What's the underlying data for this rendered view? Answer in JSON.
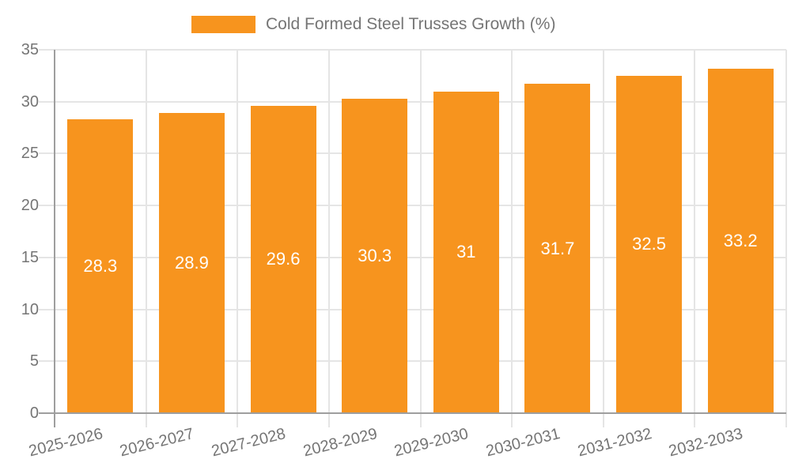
{
  "chart_data": {
    "type": "bar",
    "title": "",
    "xlabel": "",
    "ylabel": "",
    "legend": {
      "label": "Cold Formed Steel Trusses Growth (%)",
      "position": "top"
    },
    "categories": [
      "2025-2026",
      "2026-2027",
      "2027-2028",
      "2028-2029",
      "2029-2030",
      "2030-2031",
      "2031-2032",
      "2032-2033"
    ],
    "series": [
      {
        "name": "Cold Formed Steel Trusses Growth (%)",
        "values": [
          28.3,
          28.9,
          29.6,
          30.3,
          31,
          31.7,
          32.5,
          33.2
        ]
      }
    ],
    "value_labels": [
      "28.3",
      "28.9",
      "29.6",
      "30.3",
      "31",
      "31.7",
      "32.5",
      "33.2"
    ],
    "ylim": [
      0,
      35
    ],
    "yticks": [
      0,
      5,
      10,
      15,
      20,
      25,
      30,
      35
    ],
    "grid": true,
    "colors": {
      "bar": "#F7941E",
      "grid": "#E5E5E5",
      "axis": "#9E9E9E",
      "tick_text": "#757575",
      "value_text": "#FFFFFF",
      "background": "#FFFFFF"
    }
  }
}
